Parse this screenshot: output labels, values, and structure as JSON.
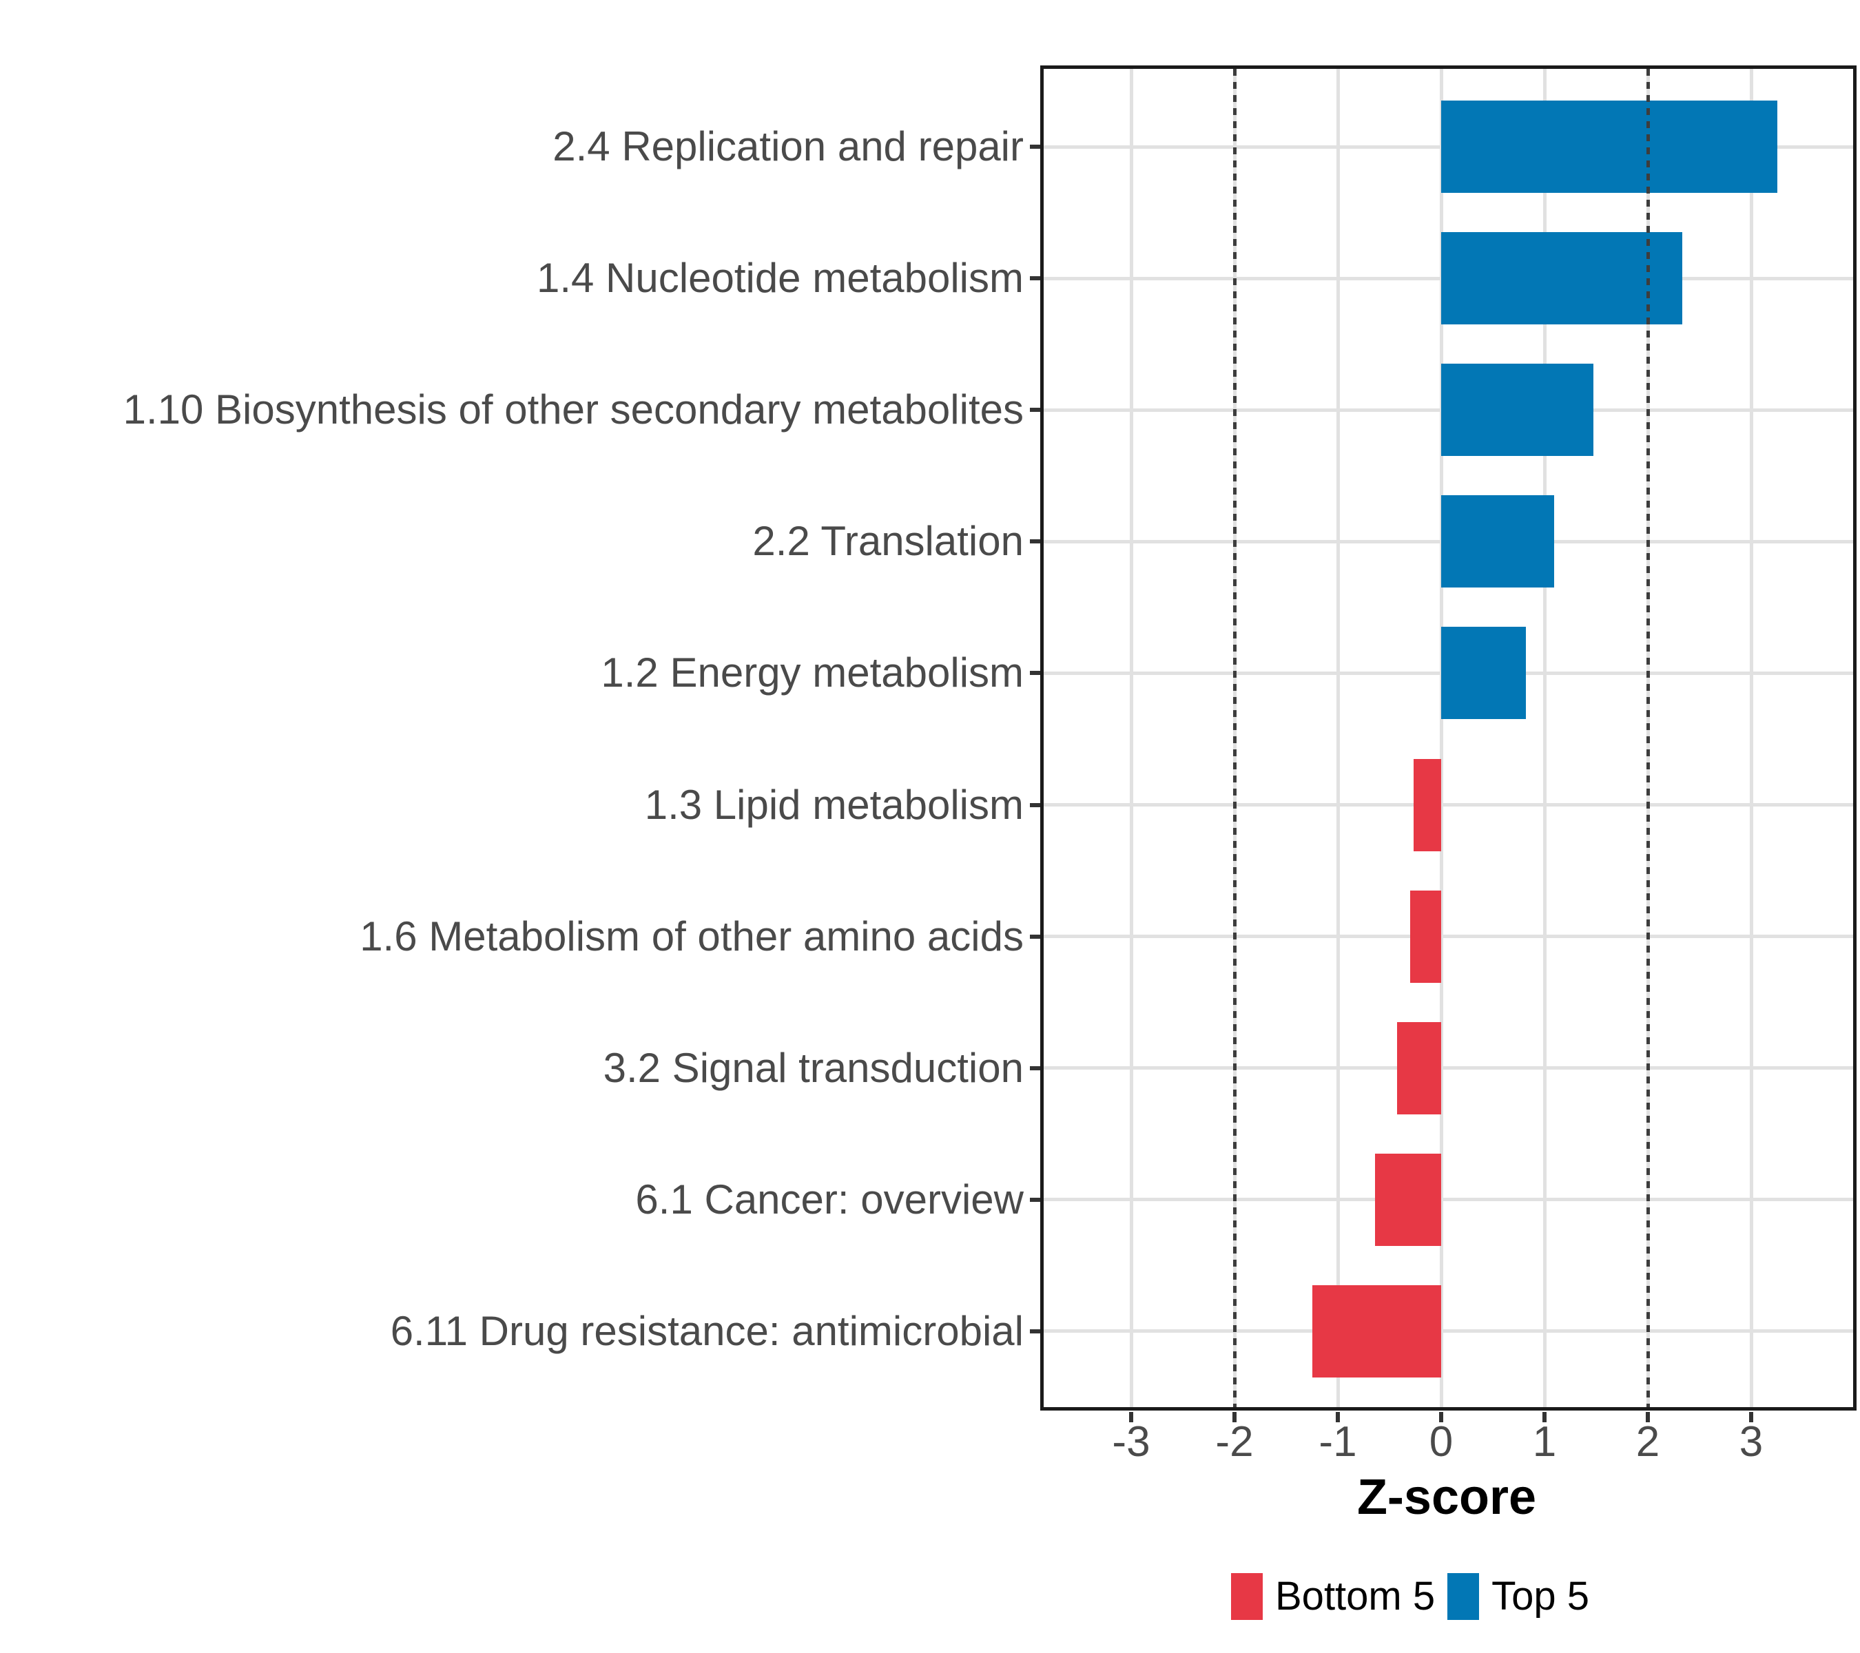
{
  "chart_data": {
    "type": "bar",
    "orientation": "horizontal",
    "title": "",
    "xlabel": "Z-score",
    "ylabel": "",
    "xlim": [
      -3.9,
      4.0
    ],
    "x_ticks": [
      -3,
      -2,
      -1,
      0,
      1,
      2,
      3
    ],
    "grid": "major-only",
    "reference_lines": {
      "style": "dotted",
      "color": "#3d3d3d",
      "values": [
        -2,
        2
      ]
    },
    "categories": [
      "2.4 Replication and repair",
      "1.4 Nucleotide metabolism",
      "1.10 Biosynthesis of other secondary metabolites",
      "2.2 Translation",
      "1.2 Energy metabolism",
      "1.3 Lipid metabolism",
      "1.6 Metabolism of other amino acids",
      "3.2 Signal transduction",
      "6.1 Cancer: overview",
      "6.11 Drug resistance: antimicrobial"
    ],
    "values": [
      3.25,
      2.33,
      1.47,
      1.09,
      0.82,
      -0.27,
      -0.3,
      -0.43,
      -0.64,
      -1.25
    ],
    "groups": [
      "Top 5",
      "Top 5",
      "Top 5",
      "Top 5",
      "Top 5",
      "Bottom 5",
      "Bottom 5",
      "Bottom 5",
      "Bottom 5",
      "Bottom 5"
    ],
    "colors": {
      "Top 5": "#0277B5",
      "Bottom 5": "#E73845"
    },
    "legend_position": "bottom"
  },
  "legend": {
    "items": [
      {
        "label": "Bottom 5",
        "color": "#E73845"
      },
      {
        "label": "Top 5",
        "color": "#0277B5"
      }
    ]
  },
  "style": {
    "grid_color": "#e1e1e1",
    "panel_border_color": "#1a1a1a",
    "axis_text_color": "#4a4a4a",
    "tick_color": "#333333",
    "background": "#ffffff"
  }
}
